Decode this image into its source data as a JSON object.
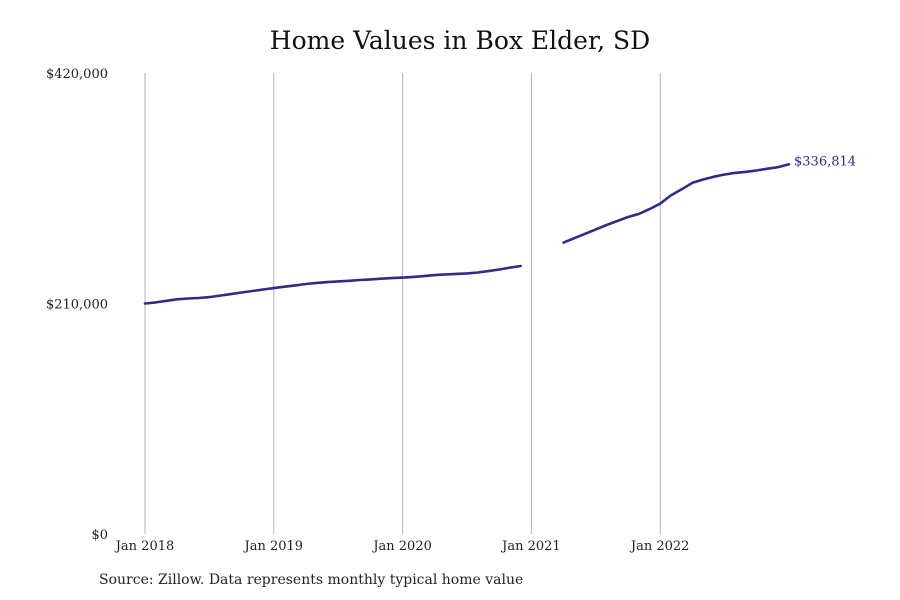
{
  "chart_data": {
    "type": "line",
    "title": "Home Values in Box Elder, SD",
    "source": "Source: Zillow. Data represents monthly typical home value",
    "xlabel": "",
    "ylabel": "",
    "ylim": [
      0,
      420000
    ],
    "yticks": [
      {
        "value": 0,
        "label": "$0"
      },
      {
        "value": 210000,
        "label": "$210,000"
      },
      {
        "value": 420000,
        "label": "$420,000"
      }
    ],
    "xticks": [
      {
        "value": "2018-01",
        "label": "Jan 2018"
      },
      {
        "value": "2019-01",
        "label": "Jan 2019"
      },
      {
        "value": "2020-01",
        "label": "Jan 2020"
      },
      {
        "value": "2021-01",
        "label": "Jan 2021"
      },
      {
        "value": "2022-01",
        "label": "Jan 2022"
      }
    ],
    "x_range": [
      "2018-01",
      "2023-01"
    ],
    "grid": "vertical",
    "line_color": "#2E2C8A",
    "end_label": "$336,814",
    "series": [
      {
        "segments": [
          [
            {
              "x": "2018-01",
              "y": 210000
            },
            {
              "x": "2018-02",
              "y": 211000
            },
            {
              "x": "2018-03",
              "y": 212500
            },
            {
              "x": "2018-04",
              "y": 213800
            },
            {
              "x": "2018-05",
              "y": 214600
            },
            {
              "x": "2018-06",
              "y": 215000
            },
            {
              "x": "2018-07",
              "y": 215800
            },
            {
              "x": "2018-08",
              "y": 217200
            },
            {
              "x": "2018-09",
              "y": 218600
            },
            {
              "x": "2018-10",
              "y": 220000
            },
            {
              "x": "2018-11",
              "y": 221400
            },
            {
              "x": "2018-12",
              "y": 222800
            },
            {
              "x": "2019-01",
              "y": 224000
            },
            {
              "x": "2019-02",
              "y": 225300
            },
            {
              "x": "2019-03",
              "y": 226500
            },
            {
              "x": "2019-04",
              "y": 227800
            },
            {
              "x": "2019-05",
              "y": 228800
            },
            {
              "x": "2019-06",
              "y": 229500
            },
            {
              "x": "2019-07",
              "y": 230100
            },
            {
              "x": "2019-08",
              "y": 230700
            },
            {
              "x": "2019-09",
              "y": 231400
            },
            {
              "x": "2019-10",
              "y": 232000
            },
            {
              "x": "2019-11",
              "y": 232600
            },
            {
              "x": "2019-12",
              "y": 233100
            },
            {
              "x": "2020-01",
              "y": 233600
            },
            {
              "x": "2020-02",
              "y": 234200
            },
            {
              "x": "2020-03",
              "y": 235000
            },
            {
              "x": "2020-04",
              "y": 235900
            },
            {
              "x": "2020-05",
              "y": 236500
            },
            {
              "x": "2020-06",
              "y": 237000
            },
            {
              "x": "2020-07",
              "y": 237400
            },
            {
              "x": "2020-08",
              "y": 238200
            },
            {
              "x": "2020-09",
              "y": 239500
            },
            {
              "x": "2020-10",
              "y": 241000
            },
            {
              "x": "2020-11",
              "y": 242700
            },
            {
              "x": "2020-12",
              "y": 244200
            }
          ],
          [
            {
              "x": "2021-04",
              "y": 265500
            },
            {
              "x": "2021-05",
              "y": 269500
            },
            {
              "x": "2021-06",
              "y": 273500
            },
            {
              "x": "2021-07",
              "y": 277500
            },
            {
              "x": "2021-08",
              "y": 281500
            },
            {
              "x": "2021-09",
              "y": 285200
            },
            {
              "x": "2021-10",
              "y": 288800
            },
            {
              "x": "2021-11",
              "y": 291500
            },
            {
              "x": "2021-12",
              "y": 296000
            },
            {
              "x": "2022-01",
              "y": 301000
            },
            {
              "x": "2022-02",
              "y": 308500
            },
            {
              "x": "2022-03",
              "y": 314000
            },
            {
              "x": "2022-04",
              "y": 320000
            },
            {
              "x": "2022-05",
              "y": 323000
            },
            {
              "x": "2022-06",
              "y": 325500
            },
            {
              "x": "2022-07",
              "y": 327500
            },
            {
              "x": "2022-08",
              "y": 329000
            },
            {
              "x": "2022-09",
              "y": 330000
            },
            {
              "x": "2022-10",
              "y": 331300
            },
            {
              "x": "2022-11",
              "y": 332800
            },
            {
              "x": "2022-12",
              "y": 334300
            },
            {
              "x": "2023-01",
              "y": 336814
            }
          ]
        ]
      }
    ]
  }
}
